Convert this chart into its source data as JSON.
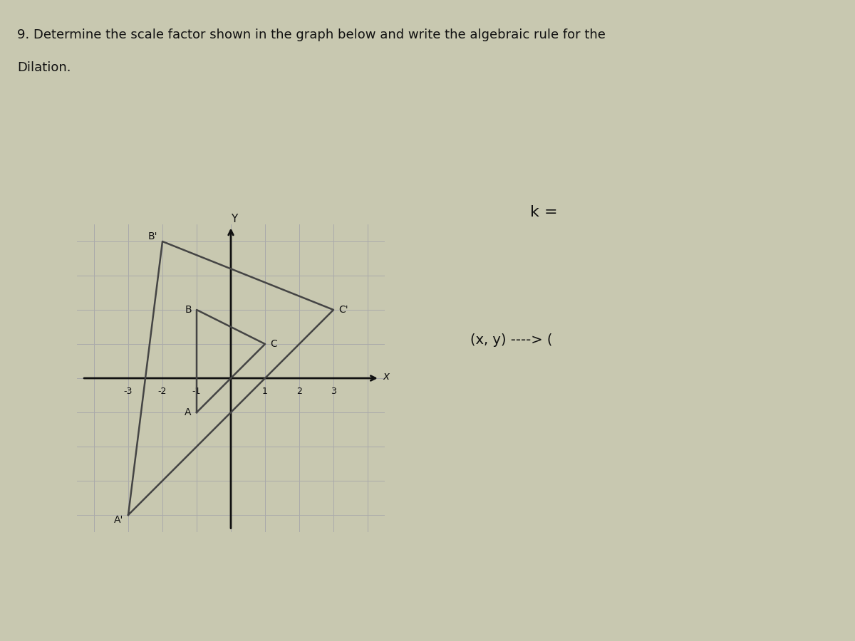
{
  "title_line1": "9. Determine the scale factor shown in the graph below and write the algebraic rule for the",
  "title_line2": "Dilation.",
  "triangle_ABC": {
    "A": [
      -1,
      -1
    ],
    "B": [
      -1,
      2
    ],
    "C": [
      1,
      1
    ]
  },
  "triangle_A1B1C1": {
    "A1": [
      -3,
      -4
    ],
    "B1": [
      -2,
      4
    ],
    "C1": [
      3,
      2
    ]
  },
  "label_A": "A",
  "label_B": "B",
  "label_C": "C",
  "label_A1": "A'",
  "label_B1": "B'",
  "label_C1": "C'",
  "k_text": "k =",
  "rule_text": "(x, y) ----> (",
  "axis_min": -4,
  "axis_max": 4,
  "tick_min": -3,
  "tick_max": 3,
  "grid_color": "#aaaaaa",
  "triangle_color": "#444444",
  "axis_color": "#111111",
  "bg_color": "#c8c8b0",
  "text_color": "#111111",
  "font_size_title": 13,
  "font_size_labels": 10,
  "font_size_tick": 9,
  "font_size_ktext": 14
}
